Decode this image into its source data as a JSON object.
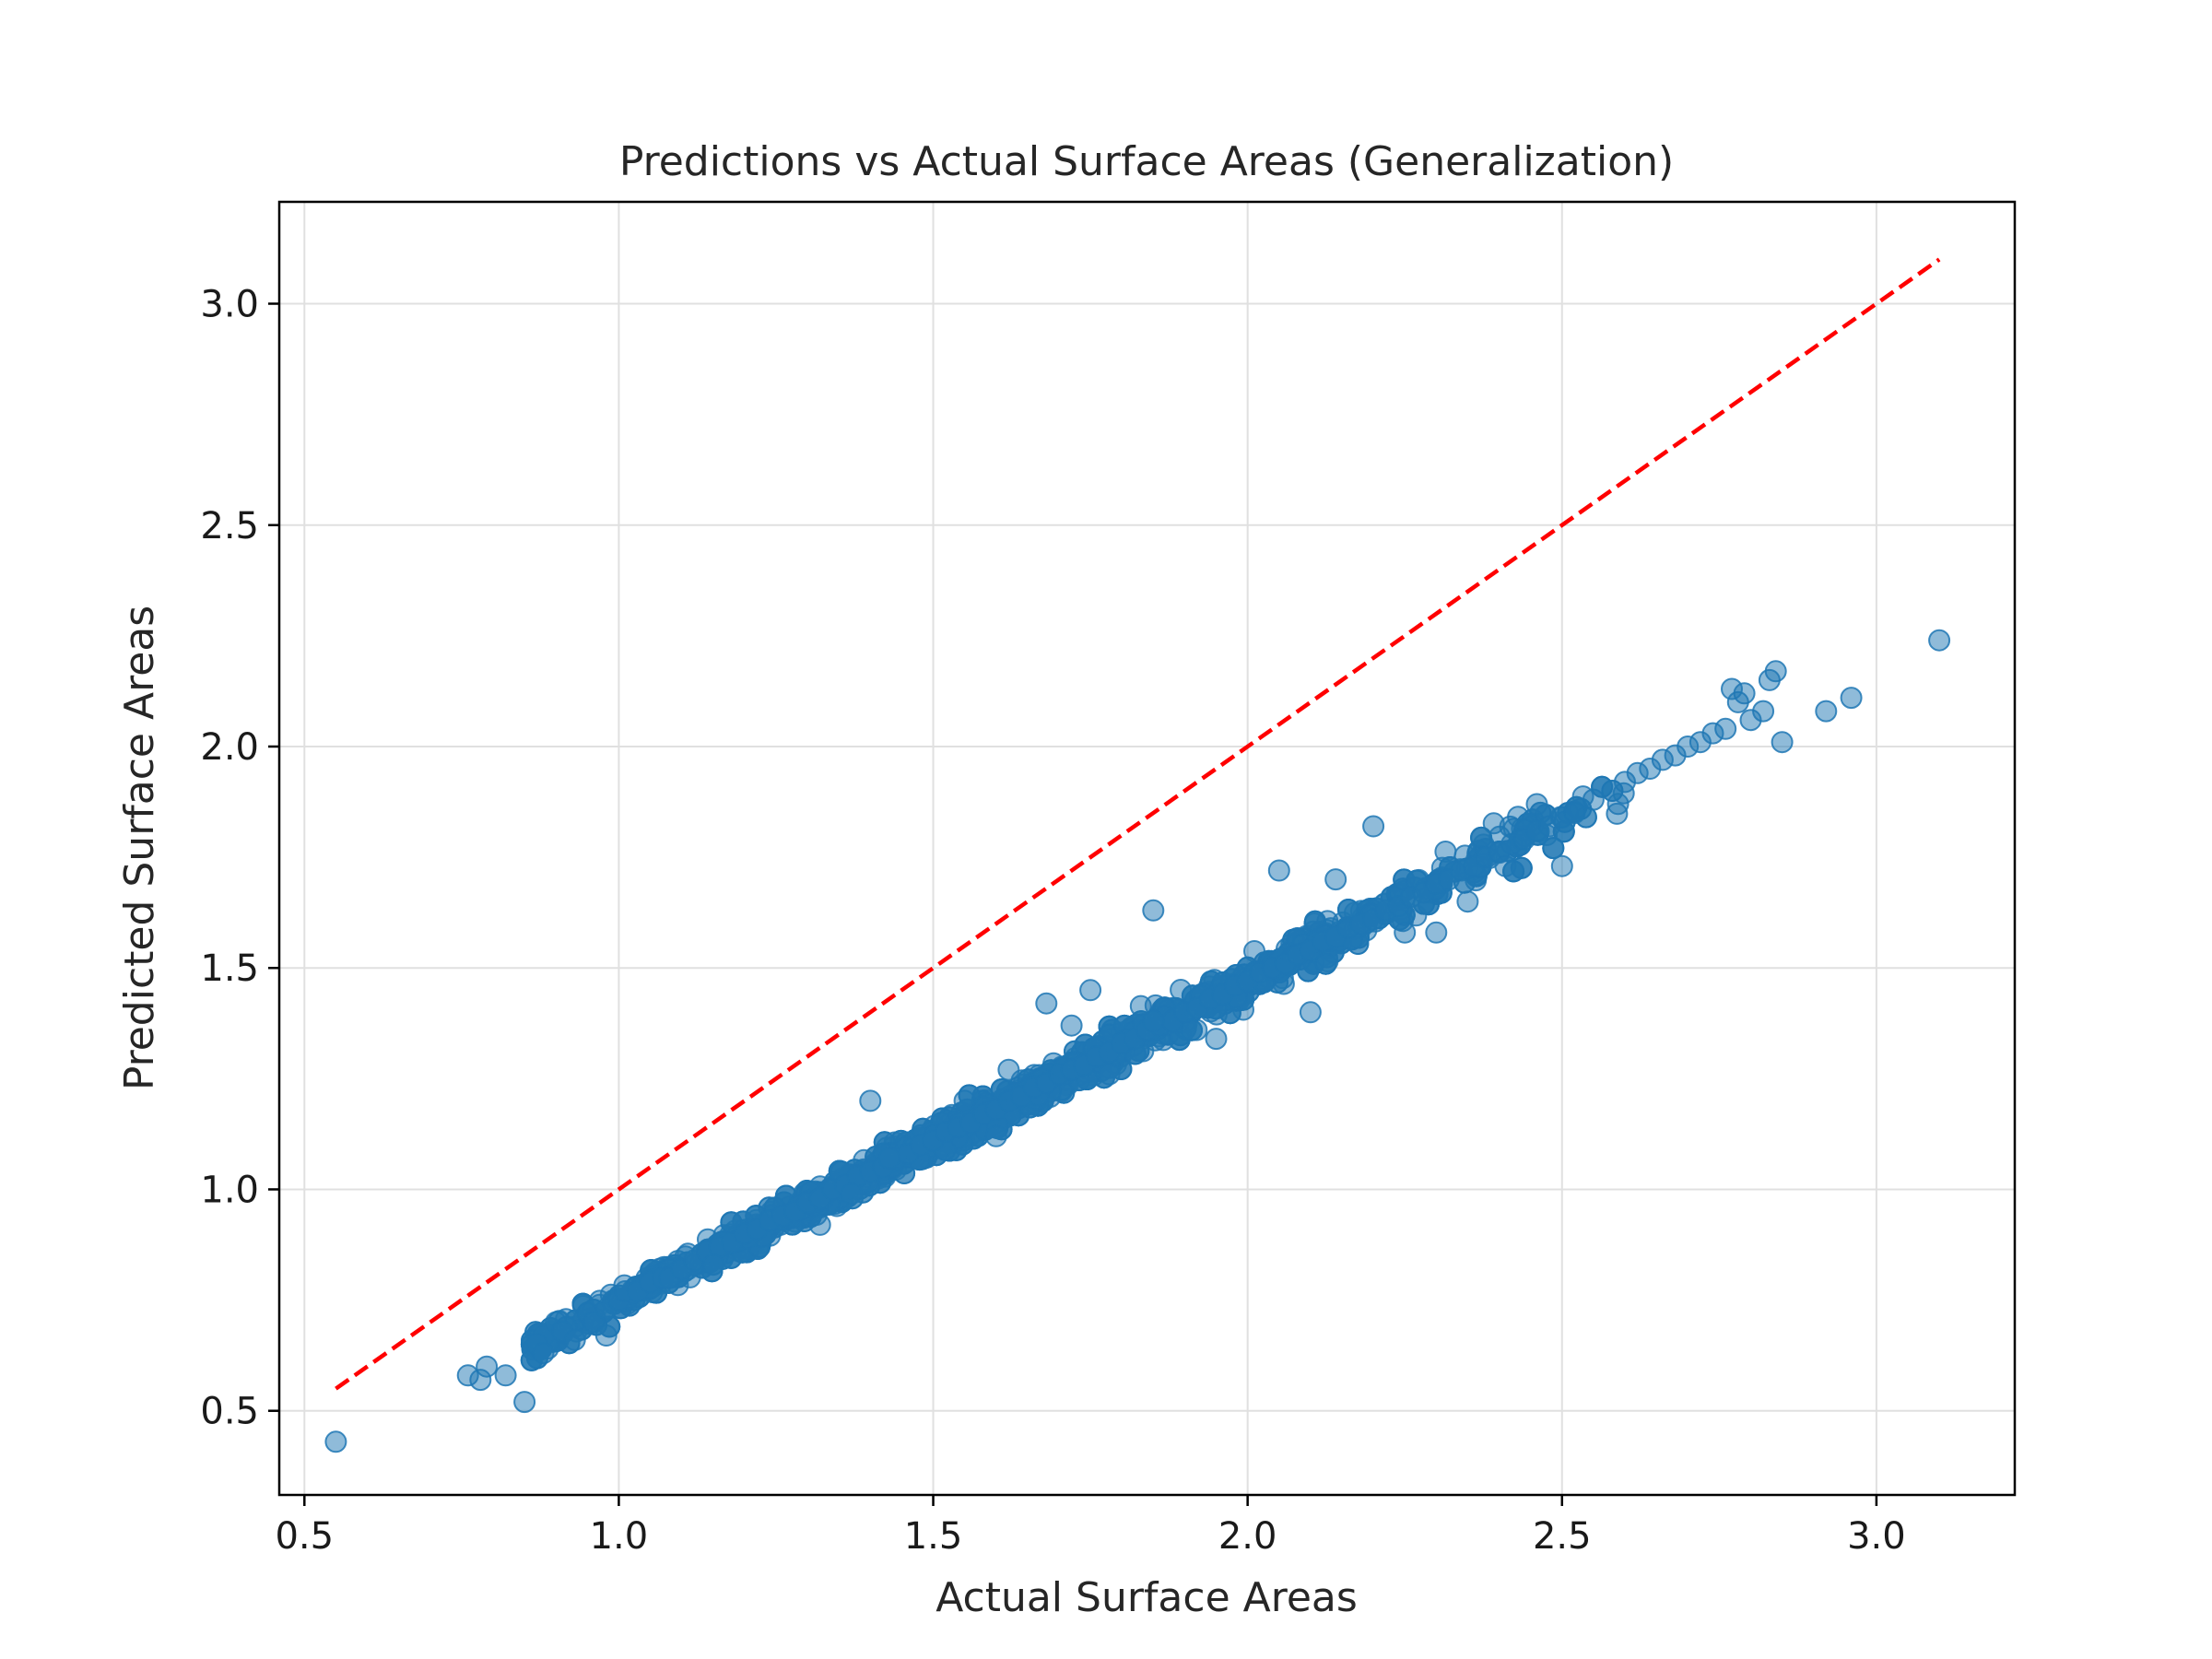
{
  "chart_data": {
    "type": "scatter",
    "title": "Predictions vs Actual Surface Areas (Generalization)",
    "xlabel": "Actual Surface Areas",
    "ylabel": "Predicted Surface Areas",
    "xlim": [
      0.46,
      3.22
    ],
    "ylim": [
      0.31,
      3.23
    ],
    "grid": true,
    "xticks": [
      0.5,
      1.0,
      1.5,
      2.0,
      2.5,
      3.0
    ],
    "yticks": [
      0.5,
      1.0,
      1.5,
      2.0,
      2.5,
      3.0
    ],
    "xtick_labels": [
      "0.5",
      "1.0",
      "1.5",
      "2.0",
      "2.5",
      "3.0"
    ],
    "ytick_labels": [
      "0.5",
      "1.0",
      "1.5",
      "2.0",
      "2.5",
      "3.0"
    ],
    "point_color": "#1f77b4",
    "point_opacity": 0.5,
    "reference_line": {
      "x": [
        0.55,
        3.1
      ],
      "y": [
        0.55,
        3.1
      ],
      "color": "#ff0000",
      "style": "dashed"
    },
    "trend": {
      "description_slope": 0.7255,
      "description_intercept": 0.0214
    },
    "sampled_points_note": "dense cloud follows y ≈ 0.7255x + 0.0214",
    "series": [
      {
        "x": [
          0.55,
          0.76,
          0.78,
          0.79,
          0.82,
          0.85,
          0.87,
          0.88,
          0.9,
          0.91,
          0.93,
          0.95,
          0.96,
          0.98,
          1.0,
          1.01,
          1.03,
          1.05,
          1.07,
          1.08,
          1.1,
          1.12,
          1.14,
          1.16,
          1.18,
          1.2,
          1.22,
          1.24,
          1.26,
          1.28,
          1.3,
          1.32,
          1.34,
          1.36,
          1.38,
          1.4,
          1.42,
          1.44,
          1.46,
          1.48,
          1.5,
          1.52,
          1.54,
          1.56,
          1.58,
          1.6,
          1.62,
          1.64,
          1.66,
          1.68,
          1.7,
          1.72,
          1.74,
          1.76,
          1.78,
          1.8,
          1.82,
          1.84,
          1.86,
          1.88,
          1.9,
          1.92,
          1.94,
          1.96,
          1.98,
          2.0,
          2.02,
          2.04,
          2.06,
          2.08,
          2.1,
          2.12,
          2.14,
          2.16,
          2.18,
          2.2,
          2.22,
          2.24,
          2.26,
          2.28,
          2.3,
          2.32,
          2.34,
          2.36,
          2.38,
          2.4,
          2.42,
          2.44,
          2.46,
          2.48,
          2.5,
          2.52,
          2.55,
          2.58,
          2.6,
          2.62,
          2.64,
          2.66,
          2.68,
          2.7,
          2.72,
          2.74,
          2.76,
          2.77,
          2.78,
          2.79,
          2.8,
          2.82,
          2.83,
          2.84,
          2.85,
          2.92,
          2.96,
          3.1,
          1.4,
          1.62,
          1.68,
          1.75,
          2.05,
          1.95,
          2.3,
          2.1,
          1.15,
          1.32,
          0.98,
          1.85,
          2.46,
          2.58,
          1.43,
          1.37,
          1.6,
          1.72,
          1.85,
          2.2,
          2.14,
          2.25,
          2.5,
          2.35,
          2.41,
          1.55,
          1.78
        ],
        "y": [
          0.43,
          0.58,
          0.57,
          0.6,
          0.58,
          0.52,
          0.65,
          0.63,
          0.7,
          0.68,
          0.66,
          0.72,
          0.7,
          0.73,
          0.75,
          0.77,
          0.77,
          0.79,
          0.8,
          0.8,
          0.82,
          0.84,
          0.86,
          0.87,
          0.88,
          0.9,
          0.91,
          0.93,
          0.94,
          0.95,
          0.97,
          0.98,
          1.0,
          1.01,
          1.03,
          1.04,
          1.05,
          1.07,
          1.08,
          1.1,
          1.11,
          1.13,
          1.14,
          1.15,
          1.17,
          1.18,
          1.2,
          1.21,
          1.23,
          1.24,
          1.26,
          1.27,
          1.28,
          1.3,
          1.31,
          1.33,
          1.34,
          1.36,
          1.37,
          1.38,
          1.4,
          1.41,
          1.43,
          1.44,
          1.46,
          1.47,
          1.49,
          1.5,
          1.51,
          1.53,
          1.54,
          1.56,
          1.57,
          1.59,
          1.6,
          1.61,
          1.63,
          1.64,
          1.66,
          1.67,
          1.69,
          1.7,
          1.72,
          1.73,
          1.75,
          1.76,
          1.78,
          1.79,
          1.81,
          1.82,
          1.84,
          1.85,
          1.88,
          1.9,
          1.92,
          1.94,
          1.95,
          1.97,
          1.98,
          2.0,
          2.01,
          2.03,
          2.04,
          2.13,
          2.1,
          2.12,
          2.06,
          2.08,
          2.15,
          2.17,
          2.01,
          2.08,
          2.11,
          2.24,
          1.2,
          1.27,
          1.42,
          1.45,
          1.72,
          1.34,
          1.58,
          1.4,
          0.83,
          0.92,
          0.67,
          1.63,
          1.87,
          1.9,
          1.07,
          0.99,
          1.12,
          1.37,
          1.38,
          1.82,
          1.7,
          1.58,
          1.73,
          1.65,
          1.73,
          1.2,
          1.26
        ]
      }
    ]
  }
}
